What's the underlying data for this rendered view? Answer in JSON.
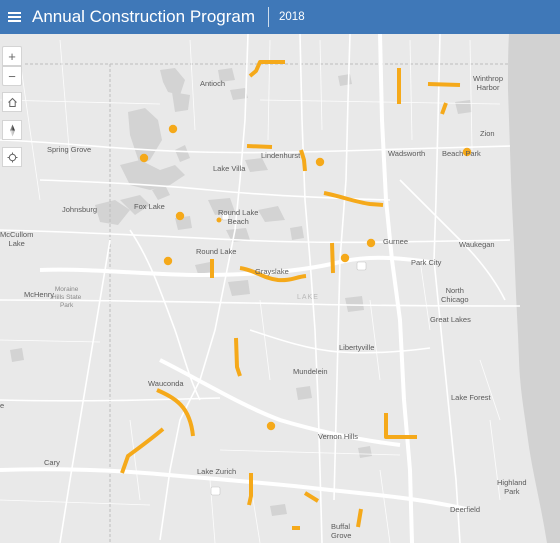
{
  "header": {
    "title": "Annual Construction Program",
    "year": "2018"
  },
  "controls": {
    "zoom_in": "+",
    "zoom_out": "−"
  },
  "colors": {
    "header_bg": "#3f78b8",
    "project": "#f5a91a",
    "water": "#d2d2d2",
    "land": "#e9e9e9"
  },
  "places": [
    {
      "key": "antioch",
      "text": "Antioch"
    },
    {
      "key": "winthrop",
      "text": "Winthrop\nHarbor"
    },
    {
      "key": "zion",
      "text": "Zion"
    },
    {
      "key": "spring_grove",
      "text": "Spring Grove"
    },
    {
      "key": "wadsworth",
      "text": "Wadsworth"
    },
    {
      "key": "beach_park",
      "text": "Beach Park"
    },
    {
      "key": "lake_villa",
      "text": "Lake Villa"
    },
    {
      "key": "lindenhurst",
      "text": "Lindenhurst"
    },
    {
      "key": "johnsburg",
      "text": "Johnsburg"
    },
    {
      "key": "fox_lake",
      "text": "Fox Lake"
    },
    {
      "key": "round_lake_beach",
      "text": "Round Lake\nBeach"
    },
    {
      "key": "mccullom",
      "text": "McCullom\nLake"
    },
    {
      "key": "gurnee",
      "text": "Gurnee"
    },
    {
      "key": "waukegan",
      "text": "Waukegan"
    },
    {
      "key": "round_lake",
      "text": "Round Lake"
    },
    {
      "key": "park_city",
      "text": "Park City"
    },
    {
      "key": "grayslake",
      "text": "Grayslake"
    },
    {
      "key": "north_chicago",
      "text": "North\nChicago"
    },
    {
      "key": "mchenry",
      "text": "McHenry"
    },
    {
      "key": "moraine",
      "text": "Moraine\nHills State\nPark"
    },
    {
      "key": "lake_county",
      "text": "LAKE"
    },
    {
      "key": "great_lakes",
      "text": "Great Lakes"
    },
    {
      "key": "libertyville",
      "text": "Libertyville"
    },
    {
      "key": "mundelein",
      "text": "Mundelein"
    },
    {
      "key": "wauconda",
      "text": "Wauconda"
    },
    {
      "key": "lake_forest",
      "text": "Lake Forest"
    },
    {
      "key": "vernon_hills",
      "text": "Vernon Hills"
    },
    {
      "key": "cary",
      "text": "Cary"
    },
    {
      "key": "lake_zurich",
      "text": "Lake Zurich"
    },
    {
      "key": "highland_park",
      "text": "Highland\nPark"
    },
    {
      "key": "deerfield",
      "text": "Deerfield"
    },
    {
      "key": "buffalo_grove",
      "text": "Buffal\nGrove"
    },
    {
      "key": "edge_e",
      "text": "e"
    }
  ]
}
